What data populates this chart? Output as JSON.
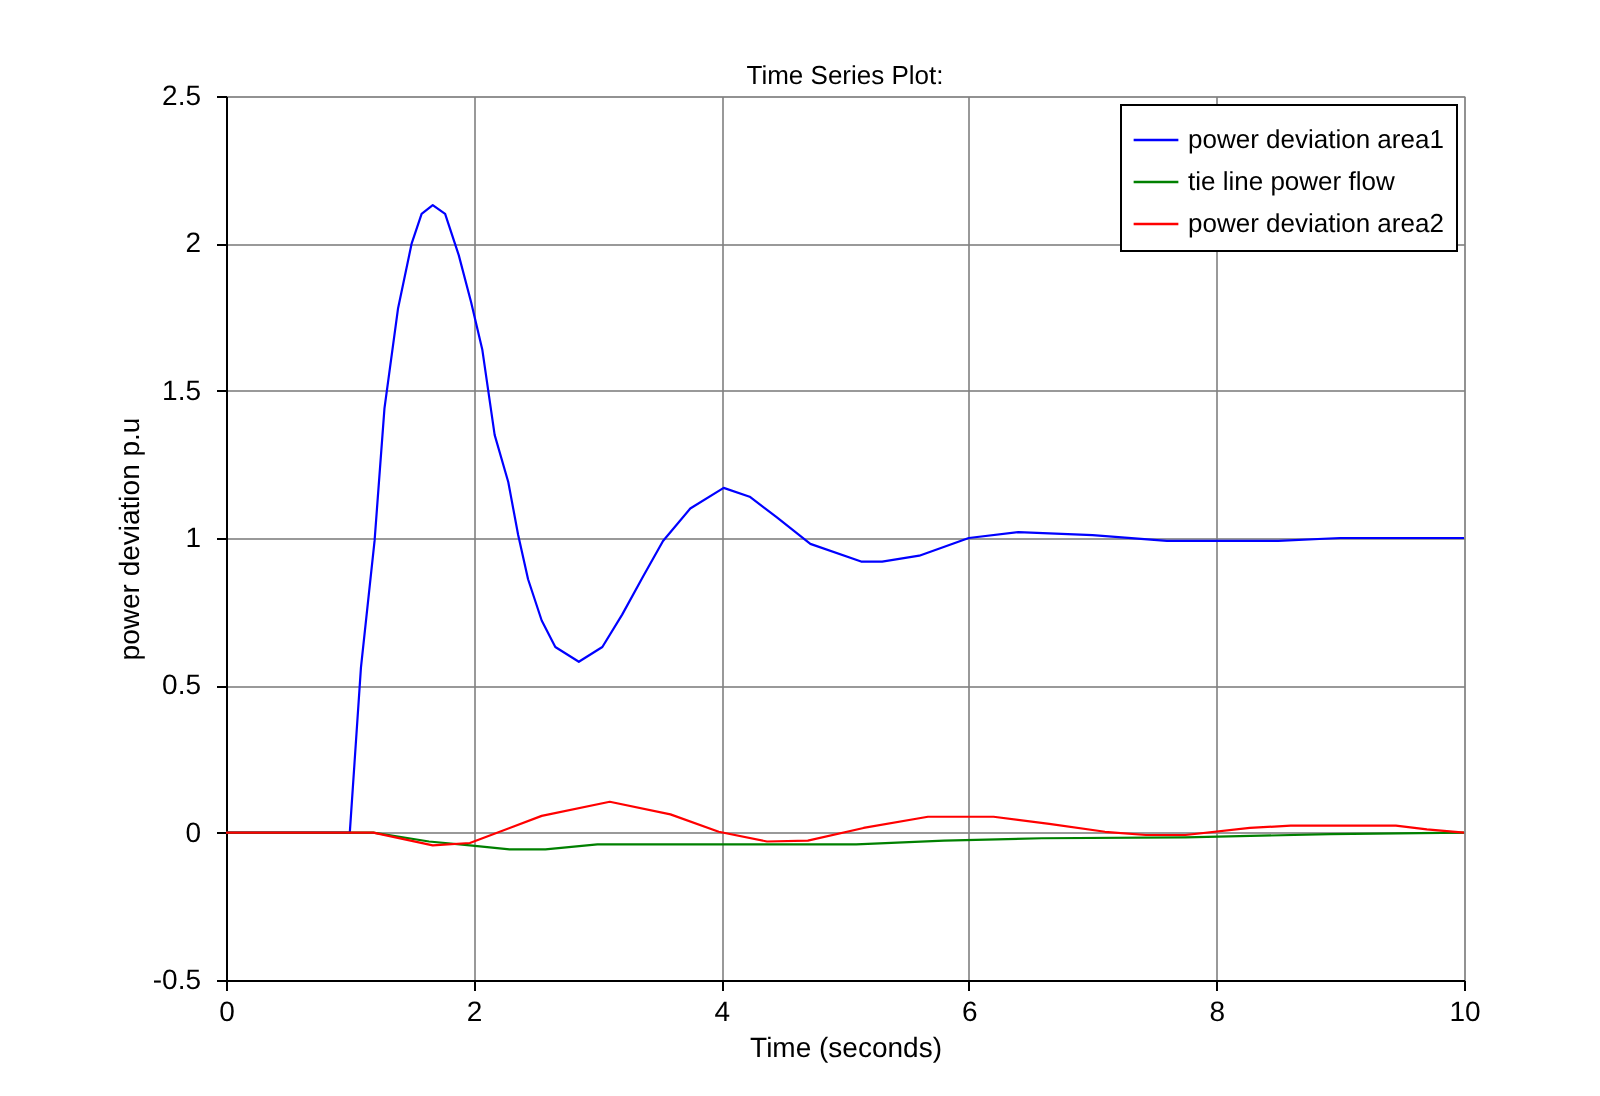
{
  "chart_data": {
    "type": "line",
    "title": "Time Series Plot:",
    "xlabel": "Time (seconds)",
    "ylabel": "power deviation p.u",
    "xlim": [
      0,
      10
    ],
    "xticks": [
      0,
      2,
      4,
      6,
      8,
      10
    ],
    "ylim": [
      -0.5,
      2.5
    ],
    "yticks": [
      -0.5,
      0,
      0.5,
      1,
      1.5,
      2,
      2.5
    ],
    "grid": true,
    "legend": "top right",
    "marker": "none",
    "line_style": "solid",
    "series": [
      {
        "name": "power deviation area1",
        "color": "#0000ff",
        "x": [
          0,
          1.0,
          1.09,
          1.2,
          1.28,
          1.39,
          1.5,
          1.58,
          1.67,
          1.77,
          1.88,
          1.98,
          2.07,
          2.17,
          2.28,
          2.36,
          2.44,
          2.55,
          2.66,
          2.85,
          3.04,
          3.2,
          3.37,
          3.53,
          3.75,
          4.02,
          4.23,
          4.45,
          4.72,
          5.13,
          5.3,
          5.6,
          6.0,
          6.4,
          7.0,
          7.6,
          8.5,
          9.0,
          10
        ],
        "values": [
          0,
          0,
          0.56,
          0.99,
          1.44,
          1.78,
          2.0,
          2.1,
          2.13,
          2.1,
          1.96,
          1.8,
          1.64,
          1.35,
          1.19,
          1.01,
          0.86,
          0.72,
          0.63,
          0.58,
          0.63,
          0.74,
          0.87,
          0.99,
          1.1,
          1.17,
          1.14,
          1.07,
          0.98,
          0.92,
          0.92,
          0.94,
          1.0,
          1.02,
          1.01,
          0.99,
          0.99,
          1.0,
          1.0
        ]
      },
      {
        "name": "tie line power flow",
        "color": "#008000",
        "x": [
          0,
          1.19,
          1.64,
          1.97,
          2.29,
          2.58,
          3.0,
          5.09,
          5.8,
          6.59,
          7.75,
          8.92,
          10
        ],
        "values": [
          0,
          0,
          -0.03,
          -0.043,
          -0.057,
          -0.057,
          -0.04,
          -0.04,
          -0.027,
          -0.019,
          -0.016,
          -0.005,
          0
        ]
      },
      {
        "name": "power deviation area2",
        "color": "#ff0000",
        "x": [
          0,
          1.19,
          1.67,
          1.97,
          2.55,
          3.1,
          3.59,
          3.98,
          4.37,
          4.7,
          5.15,
          5.67,
          6.2,
          6.65,
          7.1,
          7.43,
          7.75,
          8.27,
          8.6,
          9.45,
          9.7,
          10
        ],
        "values": [
          0,
          0,
          -0.043,
          -0.035,
          0.057,
          0.105,
          0.062,
          0.003,
          -0.03,
          -0.027,
          0.016,
          0.054,
          0.054,
          0.03,
          0.003,
          -0.008,
          -0.008,
          0.016,
          0.024,
          0.024,
          0.011,
          0
        ]
      }
    ]
  }
}
